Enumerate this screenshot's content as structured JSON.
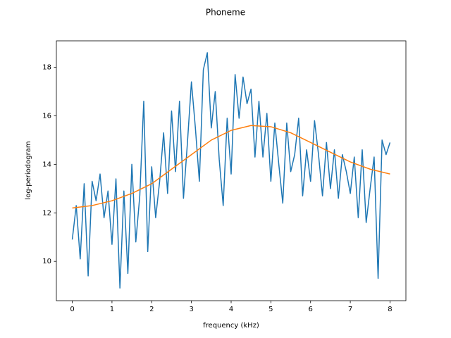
{
  "chart_data": {
    "type": "line",
    "title": "Phoneme",
    "x_label": "frequency (kHz)",
    "y_label": "log-periodogram",
    "xlim": [
      -0.4,
      8.4
    ],
    "ylim": [
      8.38,
      19.09
    ],
    "xticks": [
      0,
      1,
      2,
      3,
      4,
      5,
      6,
      7,
      8
    ],
    "yticks": [
      10,
      12,
      14,
      16,
      18
    ],
    "series": [
      {
        "color": "#1f77b4",
        "x": [
          0,
          0.1,
          0.2,
          0.3,
          0.4,
          0.5,
          0.6,
          0.7,
          0.8,
          0.9,
          1,
          1.1,
          1.2,
          1.3,
          1.4,
          1.5,
          1.6,
          1.7,
          1.8,
          1.9,
          2,
          2.1,
          2.2,
          2.3,
          2.4,
          2.5,
          2.6,
          2.7,
          2.8,
          2.9,
          3,
          3.1,
          3.2,
          3.3,
          3.4,
          3.5,
          3.6,
          3.7,
          3.8,
          3.9,
          4,
          4.1,
          4.2,
          4.3,
          4.4,
          4.5,
          4.6,
          4.7,
          4.8,
          4.9,
          5,
          5.1,
          5.2,
          5.3,
          5.4,
          5.5,
          5.6,
          5.7,
          5.8,
          5.9,
          6,
          6.1,
          6.2,
          6.3,
          6.4,
          6.5,
          6.6,
          6.7,
          6.8,
          6.9,
          7,
          7.1,
          7.2,
          7.3,
          7.4,
          7.5,
          7.6,
          7.7,
          7.8,
          7.9,
          8
        ],
        "values": [
          10.9,
          12.3,
          10.1,
          13.2,
          9.4,
          13.3,
          12.5,
          13.6,
          11.8,
          12.9,
          10.7,
          13.4,
          8.9,
          12.9,
          9.5,
          14.0,
          10.8,
          12.7,
          16.6,
          10.4,
          13.9,
          11.8,
          13.3,
          15.3,
          12.8,
          16.2,
          13.7,
          16.6,
          12.6,
          14.9,
          17.4,
          15.5,
          13.3,
          17.9,
          18.6,
          15.5,
          17.0,
          14.2,
          12.3,
          15.9,
          13.6,
          17.7,
          15.9,
          17.6,
          16.5,
          17.1,
          14.3,
          16.6,
          14.3,
          16.1,
          13.3,
          15.7,
          14.0,
          12.4,
          15.7,
          13.7,
          14.4,
          15.9,
          12.7,
          14.6,
          13.3,
          15.8,
          14.4,
          12.7,
          14.9,
          13.0,
          14.6,
          12.6,
          14.4,
          13.7,
          12.8,
          14.3,
          11.8,
          14.6,
          11.6,
          13.0,
          14.3,
          9.3,
          15.0,
          14.4,
          14.9
        ]
      },
      {
        "color": "#ff7f0e",
        "x": [
          0,
          0.5,
          1,
          1.5,
          2,
          2.5,
          3,
          3.5,
          4,
          4.5,
          5,
          5.5,
          6,
          6.5,
          7,
          7.5,
          8
        ],
        "values": [
          12.2,
          12.3,
          12.5,
          12.8,
          13.2,
          13.8,
          14.4,
          15.0,
          15.4,
          15.6,
          15.55,
          15.3,
          14.9,
          14.5,
          14.1,
          13.8,
          13.6
        ]
      }
    ]
  }
}
